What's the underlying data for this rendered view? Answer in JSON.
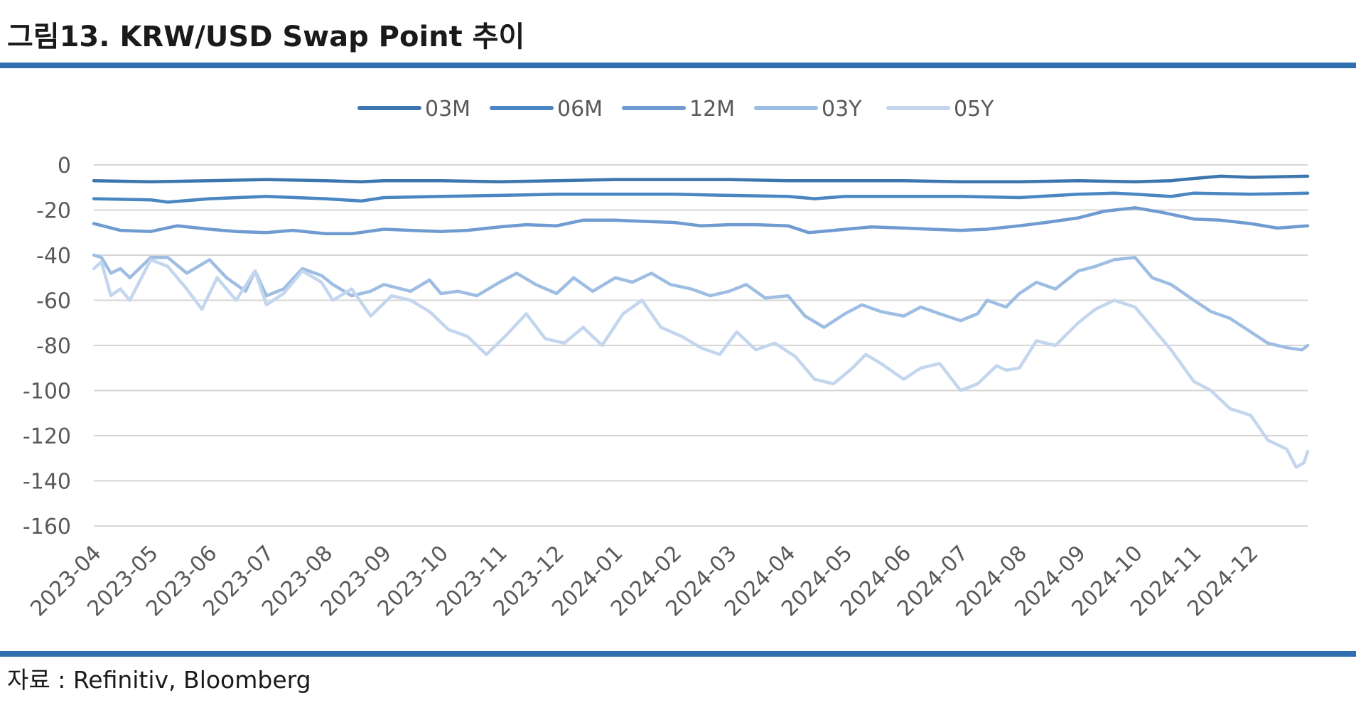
{
  "header": {
    "title": "그림13. KRW/USD Swap Point 추이"
  },
  "footer": {
    "source": "자료 : Refinitiv, Bloomberg"
  },
  "chart_data": {
    "type": "line",
    "title": "",
    "xlabel": "",
    "ylabel": "",
    "ylim": [
      -160,
      0
    ],
    "yticks": [
      0,
      -20,
      -40,
      -60,
      -80,
      -100,
      -120,
      -140,
      -160
    ],
    "xlim": [
      "2023-04-01",
      "2024-12-31"
    ],
    "x_tick_labels": [
      "2023-04",
      "2023-05",
      "2023-06",
      "2023-07",
      "2023-08",
      "2023-09",
      "2023-10",
      "2023-11",
      "2023-12",
      "2024-01",
      "2024-02",
      "2024-03",
      "2024-04",
      "2024-05",
      "2024-06",
      "2024-07",
      "2024-08",
      "2024-09",
      "2024-10",
      "2024-11",
      "2024-12"
    ],
    "grid": "horizontal",
    "legend_position": "top",
    "series": [
      {
        "name": "03M",
        "color": "#3d76ae",
        "points": [
          [
            "2023-04-01",
            -7
          ],
          [
            "2023-05-01",
            -7.5
          ],
          [
            "2023-06-01",
            -7
          ],
          [
            "2023-07-01",
            -6.5
          ],
          [
            "2023-08-01",
            -7
          ],
          [
            "2023-08-20",
            -7.5
          ],
          [
            "2023-09-01",
            -7
          ],
          [
            "2023-10-01",
            -7
          ],
          [
            "2023-11-01",
            -7.5
          ],
          [
            "2023-12-01",
            -7
          ],
          [
            "2024-01-01",
            -6.5
          ],
          [
            "2024-02-01",
            -6.5
          ],
          [
            "2024-03-01",
            -6.5
          ],
          [
            "2024-04-01",
            -7
          ],
          [
            "2024-05-01",
            -7
          ],
          [
            "2024-06-01",
            -7
          ],
          [
            "2024-07-01",
            -7.5
          ],
          [
            "2024-08-01",
            -7.5
          ],
          [
            "2024-09-01",
            -7
          ],
          [
            "2024-10-01",
            -7.5
          ],
          [
            "2024-10-20",
            -7
          ],
          [
            "2024-11-01",
            -6
          ],
          [
            "2024-11-15",
            -5
          ],
          [
            "2024-12-01",
            -5.5
          ],
          [
            "2024-12-31",
            -5
          ]
        ]
      },
      {
        "name": "06M",
        "color": "#4a86c2",
        "points": [
          [
            "2023-04-01",
            -15
          ],
          [
            "2023-05-01",
            -15.5
          ],
          [
            "2023-05-10",
            -16.5
          ],
          [
            "2023-06-01",
            -15
          ],
          [
            "2023-07-01",
            -14
          ],
          [
            "2023-08-01",
            -15
          ],
          [
            "2023-08-20",
            -16
          ],
          [
            "2023-09-01",
            -14.5
          ],
          [
            "2023-10-01",
            -14
          ],
          [
            "2023-11-01",
            -13.5
          ],
          [
            "2023-12-01",
            -13
          ],
          [
            "2024-01-01",
            -13
          ],
          [
            "2024-02-01",
            -13
          ],
          [
            "2024-03-01",
            -13.5
          ],
          [
            "2024-04-01",
            -14
          ],
          [
            "2024-04-15",
            -15
          ],
          [
            "2024-05-01",
            -14
          ],
          [
            "2024-06-01",
            -14
          ],
          [
            "2024-07-01",
            -14
          ],
          [
            "2024-08-01",
            -14.5
          ],
          [
            "2024-09-01",
            -13
          ],
          [
            "2024-09-20",
            -12.5
          ],
          [
            "2024-10-01",
            -13
          ],
          [
            "2024-10-20",
            -14
          ],
          [
            "2024-11-01",
            -12.5
          ],
          [
            "2024-12-01",
            -13
          ],
          [
            "2024-12-31",
            -12.5
          ]
        ]
      },
      {
        "name": "12M",
        "color": "#6f9bd1",
        "points": [
          [
            "2023-04-01",
            -26
          ],
          [
            "2023-04-15",
            -29
          ],
          [
            "2023-05-01",
            -29.5
          ],
          [
            "2023-05-15",
            -27
          ],
          [
            "2023-06-01",
            -28.5
          ],
          [
            "2023-06-15",
            -29.5
          ],
          [
            "2023-07-01",
            -30
          ],
          [
            "2023-07-15",
            -29
          ],
          [
            "2023-08-01",
            -30.5
          ],
          [
            "2023-08-15",
            -30.5
          ],
          [
            "2023-09-01",
            -28.5
          ],
          [
            "2023-09-15",
            -29
          ],
          [
            "2023-10-01",
            -29.5
          ],
          [
            "2023-10-15",
            -29
          ],
          [
            "2023-11-01",
            -27.5
          ],
          [
            "2023-11-15",
            -26.5
          ],
          [
            "2023-12-01",
            -27
          ],
          [
            "2023-12-15",
            -24.5
          ],
          [
            "2024-01-01",
            -24.5
          ],
          [
            "2024-01-15",
            -25
          ],
          [
            "2024-02-01",
            -25.5
          ],
          [
            "2024-02-15",
            -27
          ],
          [
            "2024-03-01",
            -26.5
          ],
          [
            "2024-03-15",
            -26.5
          ],
          [
            "2024-04-01",
            -27
          ],
          [
            "2024-04-12",
            -30
          ],
          [
            "2024-04-25",
            -29
          ],
          [
            "2024-05-15",
            -27.5
          ],
          [
            "2024-06-01",
            -28
          ],
          [
            "2024-06-15",
            -28.5
          ],
          [
            "2024-07-01",
            -29
          ],
          [
            "2024-07-15",
            -28.5
          ],
          [
            "2024-08-01",
            -27
          ],
          [
            "2024-08-15",
            -25.5
          ],
          [
            "2024-09-01",
            -23.5
          ],
          [
            "2024-09-15",
            -20.5
          ],
          [
            "2024-10-01",
            -19
          ],
          [
            "2024-10-15",
            -21
          ],
          [
            "2024-11-01",
            -24
          ],
          [
            "2024-11-15",
            -24.5
          ],
          [
            "2024-12-01",
            -26
          ],
          [
            "2024-12-15",
            -28
          ],
          [
            "2024-12-31",
            -27
          ]
        ]
      },
      {
        "name": "03Y",
        "color": "#9dbde3",
        "points": [
          [
            "2023-04-01",
            -40
          ],
          [
            "2023-04-05",
            -41
          ],
          [
            "2023-04-10",
            -48
          ],
          [
            "2023-04-15",
            -46
          ],
          [
            "2023-04-20",
            -50
          ],
          [
            "2023-05-01",
            -41
          ],
          [
            "2023-05-10",
            -41
          ],
          [
            "2023-05-20",
            -48
          ],
          [
            "2023-06-01",
            -42
          ],
          [
            "2023-06-10",
            -50
          ],
          [
            "2023-06-20",
            -56
          ],
          [
            "2023-06-25",
            -47
          ],
          [
            "2023-07-01",
            -58
          ],
          [
            "2023-07-10",
            -55
          ],
          [
            "2023-07-20",
            -46
          ],
          [
            "2023-07-30",
            -49
          ],
          [
            "2023-08-05",
            -53
          ],
          [
            "2023-08-15",
            -58
          ],
          [
            "2023-08-25",
            -56
          ],
          [
            "2023-09-01",
            -53
          ],
          [
            "2023-09-15",
            -56
          ],
          [
            "2023-09-25",
            -51
          ],
          [
            "2023-10-01",
            -57
          ],
          [
            "2023-10-10",
            -56
          ],
          [
            "2023-10-20",
            -58
          ],
          [
            "2023-11-01",
            -52
          ],
          [
            "2023-11-10",
            -48
          ],
          [
            "2023-11-20",
            -53
          ],
          [
            "2023-12-01",
            -57
          ],
          [
            "2023-12-10",
            -50
          ],
          [
            "2023-12-20",
            -56
          ],
          [
            "2024-01-01",
            -50
          ],
          [
            "2024-01-10",
            -52
          ],
          [
            "2024-01-20",
            -48
          ],
          [
            "2024-01-30",
            -53
          ],
          [
            "2024-02-10",
            -55
          ],
          [
            "2024-02-20",
            -58
          ],
          [
            "2024-03-01",
            -56
          ],
          [
            "2024-03-10",
            -53
          ],
          [
            "2024-03-20",
            -59
          ],
          [
            "2024-04-01",
            -58
          ],
          [
            "2024-04-10",
            -67
          ],
          [
            "2024-04-20",
            -72
          ],
          [
            "2024-05-01",
            -66
          ],
          [
            "2024-05-10",
            -62
          ],
          [
            "2024-05-20",
            -65
          ],
          [
            "2024-06-01",
            -67
          ],
          [
            "2024-06-10",
            -63
          ],
          [
            "2024-06-20",
            -66
          ],
          [
            "2024-07-01",
            -69
          ],
          [
            "2024-07-10",
            -66
          ],
          [
            "2024-07-15",
            -60
          ],
          [
            "2024-07-25",
            -63
          ],
          [
            "2024-08-01",
            -57
          ],
          [
            "2024-08-10",
            -52
          ],
          [
            "2024-08-20",
            -55
          ],
          [
            "2024-09-01",
            -47
          ],
          [
            "2024-09-10",
            -45
          ],
          [
            "2024-09-20",
            -42
          ],
          [
            "2024-10-01",
            -41
          ],
          [
            "2024-10-10",
            -50
          ],
          [
            "2024-10-20",
            -53
          ],
          [
            "2024-11-01",
            -60
          ],
          [
            "2024-11-10",
            -65
          ],
          [
            "2024-11-20",
            -68
          ],
          [
            "2024-12-01",
            -74
          ],
          [
            "2024-12-10",
            -79
          ],
          [
            "2024-12-20",
            -81
          ],
          [
            "2024-12-28",
            -82
          ],
          [
            "2024-12-31",
            -80
          ]
        ]
      },
      {
        "name": "05Y",
        "color": "#c3d6ee",
        "points": [
          [
            "2023-04-01",
            -46
          ],
          [
            "2023-04-05",
            -43
          ],
          [
            "2023-04-10",
            -58
          ],
          [
            "2023-04-15",
            -55
          ],
          [
            "2023-04-20",
            -60
          ],
          [
            "2023-05-01",
            -42
          ],
          [
            "2023-05-10",
            -45
          ],
          [
            "2023-05-20",
            -55
          ],
          [
            "2023-05-28",
            -64
          ],
          [
            "2023-06-05",
            -50
          ],
          [
            "2023-06-15",
            -60
          ],
          [
            "2023-06-25",
            -47
          ],
          [
            "2023-07-01",
            -62
          ],
          [
            "2023-07-10",
            -57
          ],
          [
            "2023-07-20",
            -47
          ],
          [
            "2023-07-30",
            -52
          ],
          [
            "2023-08-05",
            -60
          ],
          [
            "2023-08-15",
            -55
          ],
          [
            "2023-08-25",
            -67
          ],
          [
            "2023-09-05",
            -58
          ],
          [
            "2023-09-15",
            -60
          ],
          [
            "2023-09-25",
            -65
          ],
          [
            "2023-10-05",
            -73
          ],
          [
            "2023-10-15",
            -76
          ],
          [
            "2023-10-25",
            -84
          ],
          [
            "2023-11-05",
            -75
          ],
          [
            "2023-11-15",
            -66
          ],
          [
            "2023-11-25",
            -77
          ],
          [
            "2023-12-05",
            -79
          ],
          [
            "2023-12-15",
            -72
          ],
          [
            "2023-12-25",
            -80
          ],
          [
            "2024-01-05",
            -66
          ],
          [
            "2024-01-15",
            -60
          ],
          [
            "2024-01-25",
            -72
          ],
          [
            "2024-02-05",
            -76
          ],
          [
            "2024-02-15",
            -81
          ],
          [
            "2024-02-25",
            -84
          ],
          [
            "2024-03-05",
            -74
          ],
          [
            "2024-03-15",
            -82
          ],
          [
            "2024-03-25",
            -79
          ],
          [
            "2024-04-05",
            -85
          ],
          [
            "2024-04-15",
            -95
          ],
          [
            "2024-04-25",
            -97
          ],
          [
            "2024-05-05",
            -90
          ],
          [
            "2024-05-12",
            -84
          ],
          [
            "2024-05-20",
            -88
          ],
          [
            "2024-06-01",
            -95
          ],
          [
            "2024-06-10",
            -90
          ],
          [
            "2024-06-20",
            -88
          ],
          [
            "2024-07-01",
            -100
          ],
          [
            "2024-07-10",
            -97
          ],
          [
            "2024-07-20",
            -89
          ],
          [
            "2024-07-25",
            -91
          ],
          [
            "2024-08-01",
            -90
          ],
          [
            "2024-08-10",
            -78
          ],
          [
            "2024-08-20",
            -80
          ],
          [
            "2024-09-01",
            -70
          ],
          [
            "2024-09-10",
            -64
          ],
          [
            "2024-09-20",
            -60
          ],
          [
            "2024-10-01",
            -63
          ],
          [
            "2024-10-10",
            -72
          ],
          [
            "2024-10-20",
            -82
          ],
          [
            "2024-11-01",
            -96
          ],
          [
            "2024-11-10",
            -100
          ],
          [
            "2024-11-20",
            -108
          ],
          [
            "2024-12-01",
            -111
          ],
          [
            "2024-12-10",
            -122
          ],
          [
            "2024-12-20",
            -126
          ],
          [
            "2024-12-25",
            -134
          ],
          [
            "2024-12-29",
            -132
          ],
          [
            "2024-12-31",
            -127
          ]
        ]
      }
    ]
  }
}
